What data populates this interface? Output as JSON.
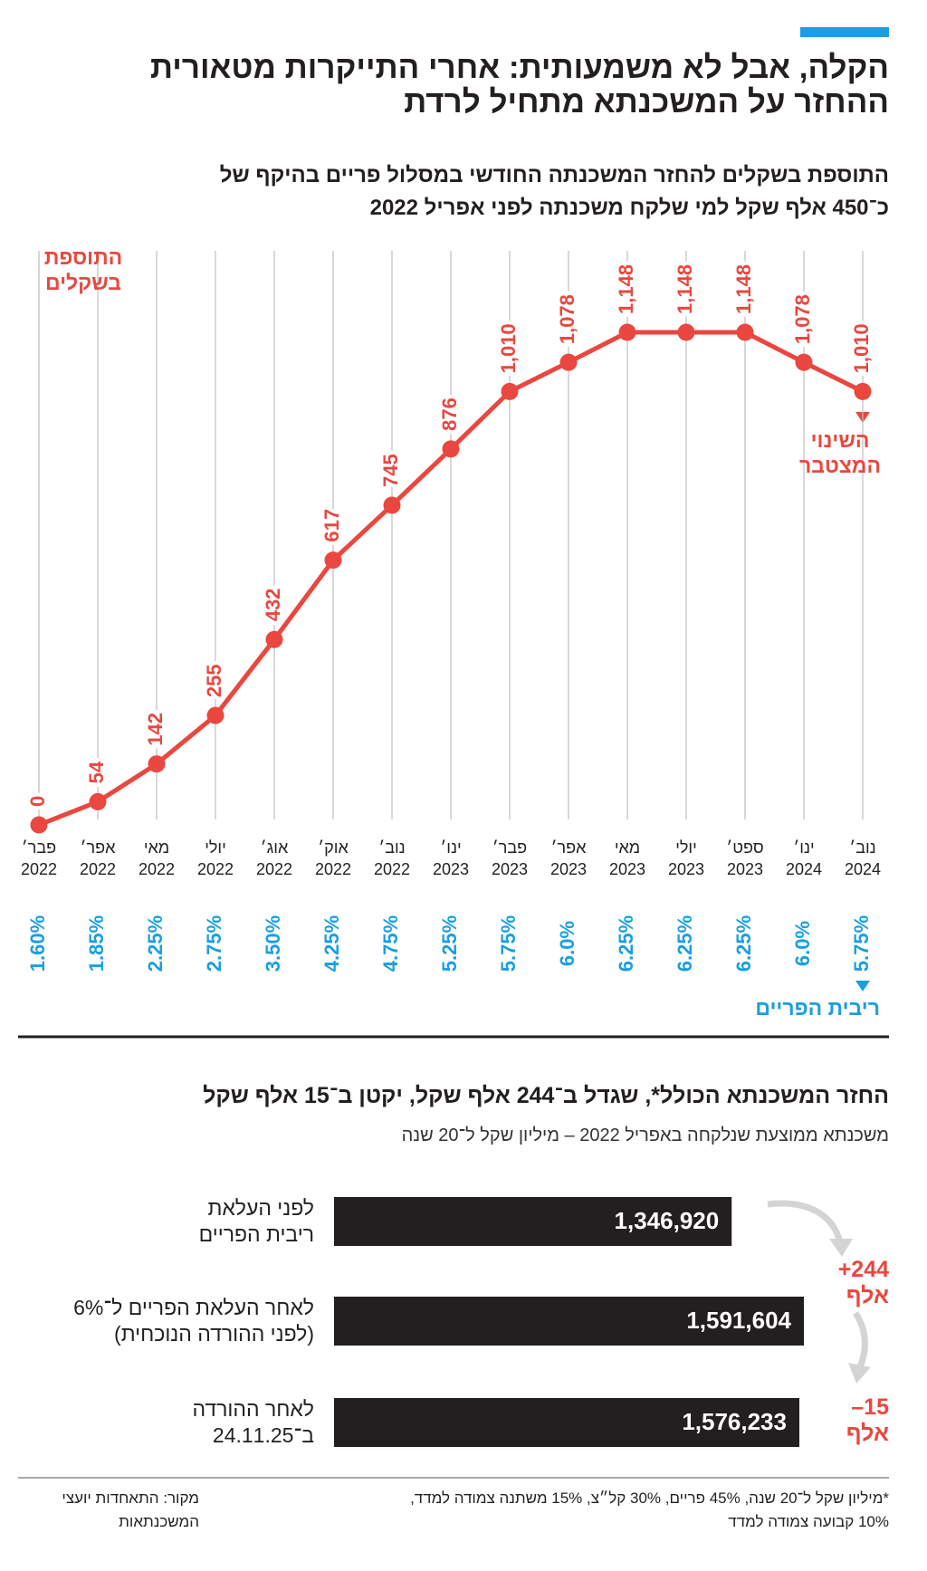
{
  "header": {
    "title": "הקלה, אבל לא משמעותית: אחרי התייקרות מטאורית\nההחזר על המשכנתא מתחיל לרדת"
  },
  "chart_data": [
    {
      "type": "line",
      "title": "התוספת בשקלים להחזר המשכנתה החודשי במסלול פריים בהיקף של\nכ־450 אלף שקל למי שלקח משכנתה לפני אפריל 2022",
      "y_label": "התוספת\nבשקלים",
      "annotation": "השינוי\nהמצטבר",
      "categories": [
        "פבר׳\n2022",
        "אפר׳\n2022",
        "מאי\n2022",
        "יולי\n2022",
        "אוג׳\n2022",
        "אוק׳\n2022",
        "נוב׳\n2022",
        "ינו׳\n2023",
        "פבר׳\n2023",
        "אפר׳\n2023",
        "מאי\n2023",
        "יולי\n2023",
        "ספט׳\n2023",
        "ינו׳\n2024",
        "נוב׳\n2024"
      ],
      "values": [
        0,
        54,
        142,
        255,
        432,
        617,
        745,
        876,
        1010,
        1078,
        1148,
        1148,
        1148,
        1078,
        1010
      ],
      "value_labels": [
        "0",
        "54",
        "142",
        "255",
        "432",
        "617",
        "745",
        "876",
        "1,010",
        "1,078",
        "1,148",
        "1,148",
        "1,148",
        "1,078",
        "1,010"
      ],
      "color": "#e9473f",
      "prime_rate": {
        "label": "ריבית הפריים",
        "color": "#1a9fe0",
        "values": [
          1.6,
          1.85,
          2.25,
          2.75,
          3.5,
          4.25,
          4.75,
          5.25,
          5.75,
          6.0,
          6.25,
          6.25,
          6.25,
          6.0,
          5.75
        ],
        "value_labels": [
          "1.60%",
          "1.85%",
          "2.25%",
          "2.75%",
          "3.50%",
          "4.25%",
          "4.75%",
          "5.25%",
          "5.75%",
          "6.0%",
          "6.25%",
          "6.25%",
          "6.25%",
          "6.0%",
          "5.75%"
        ]
      }
    },
    {
      "type": "hbar",
      "title": "החזר המשכנתא הכולל*, שגדל ב־244 אלף שקל, יקטן ב־15 אלף שקל",
      "subtitle": "משכנתא ממוצעת שנלקחה באפריל 2022 – מיליון שקל ל־20 שנה",
      "categories": [
        "לפני העלאת\nריבית הפריים",
        "לאחר העלאת הפריים ל־6%\n(לפני ההורדה הנוכחית)",
        "לאחר ההורדה\nב־24.11.25"
      ],
      "values": [
        1346920,
        1591604,
        1576233
      ],
      "value_labels": [
        "1,346,920",
        "1,591,604",
        "1,576,233"
      ],
      "color": "#231f20",
      "annotations": [
        "+244\nאלף",
        "–15\nאלף"
      ],
      "annotation_color": "#e9473f"
    }
  ],
  "footer": {
    "note": "*מיליון שקל ל־20 שנה, 45% פריים, 30% קל״צ, 15% משתנה צמודה למדד,\n10% קבועה צמודה למדד",
    "source": "מקור: התאחדות יועצי\nהמשכנתאות"
  }
}
